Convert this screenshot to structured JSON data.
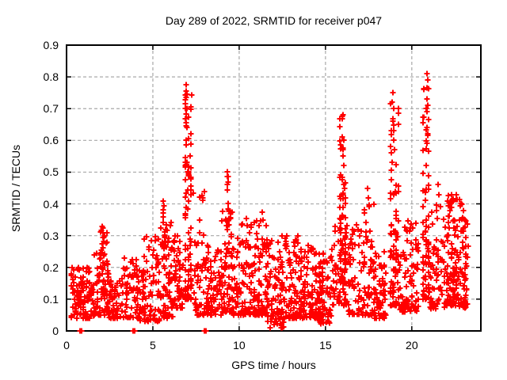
{
  "chart_data": {
    "type": "scatter",
    "title": "Day 289 of 2022, SRMTID for receiver p047",
    "xlabel": "GPS time / hours",
    "ylabel": "SRMTID / TECUs",
    "xlim": [
      0,
      24
    ],
    "ylim": [
      0,
      0.9
    ],
    "xticks": [
      "0",
      "5",
      "10",
      "15",
      "20"
    ],
    "yticks": [
      "0",
      "0.1",
      "0.2",
      "0.3",
      "0.4",
      "0.5",
      "0.6",
      "0.7",
      "0.8",
      "0.9"
    ],
    "grid": {
      "visible": true,
      "style": "dashed",
      "color": "#a8a8a8"
    },
    "legend": "none",
    "marker": {
      "shape": "plus",
      "color": "#ff0000",
      "size": 7
    },
    "border_color": "#000000",
    "seed": 289,
    "point_clusters": [
      {
        "x0": 0.25,
        "x1": 1.6,
        "y0": 0.04,
        "y1": 0.2,
        "n": 115,
        "pw": 1.5
      },
      {
        "x0": 1.6,
        "x1": 2.45,
        "y0": 0.05,
        "y1": 0.31,
        "n": 80,
        "pw": 1.8
      },
      {
        "x0": 1.95,
        "x1": 2.15,
        "y0": 0.18,
        "y1": 0.33,
        "n": 12,
        "pw": 1.0,
        "cols": 2
      },
      {
        "x0": 2.45,
        "x1": 3.2,
        "y0": 0.04,
        "y1": 0.16,
        "n": 55,
        "pw": 1.4
      },
      {
        "x0": 3.2,
        "x1": 4.25,
        "y0": 0.04,
        "y1": 0.23,
        "n": 75,
        "pw": 1.6
      },
      {
        "x0": 4.25,
        "x1": 5.45,
        "y0": 0.03,
        "y1": 0.3,
        "n": 95,
        "pw": 1.9
      },
      {
        "x0": 5.45,
        "x1": 6.15,
        "y0": 0.04,
        "y1": 0.36,
        "n": 70,
        "pw": 1.8
      },
      {
        "x0": 5.58,
        "x1": 5.72,
        "y0": 0.22,
        "y1": 0.41,
        "n": 10,
        "pw": 1.0,
        "cols": 2
      },
      {
        "x0": 6.15,
        "x1": 6.75,
        "y0": 0.07,
        "y1": 0.3,
        "n": 55,
        "pw": 1.5
      },
      {
        "x0": 6.82,
        "x1": 7.28,
        "y0": 0.1,
        "y1": 0.78,
        "n": 90,
        "pw": 2.0,
        "cols": 3
      },
      {
        "x0": 7.35,
        "x1": 8.15,
        "y0": 0.05,
        "y1": 0.44,
        "n": 60,
        "pw": 2.1
      },
      {
        "x0": 8.15,
        "x1": 9.0,
        "y0": 0.05,
        "y1": 0.27,
        "n": 70,
        "pw": 1.5
      },
      {
        "x0": 9.0,
        "x1": 9.6,
        "y0": 0.06,
        "y1": 0.38,
        "n": 55,
        "pw": 1.9
      },
      {
        "x0": 9.26,
        "x1": 9.44,
        "y0": 0.2,
        "y1": 0.5,
        "n": 14,
        "pw": 1.2,
        "cols": 2
      },
      {
        "x0": 9.6,
        "x1": 10.5,
        "y0": 0.05,
        "y1": 0.36,
        "n": 75,
        "pw": 1.9
      },
      {
        "x0": 10.5,
        "x1": 11.6,
        "y0": 0.05,
        "y1": 0.37,
        "n": 115,
        "pw": 1.9
      },
      {
        "x0": 11.6,
        "x1": 12.6,
        "y0": 0.01,
        "y1": 0.3,
        "n": 95,
        "pw": 1.8
      },
      {
        "x0": 12.6,
        "x1": 13.6,
        "y0": 0.04,
        "y1": 0.3,
        "n": 90,
        "pw": 1.7
      },
      {
        "x0": 13.6,
        "x1": 14.6,
        "y0": 0.04,
        "y1": 0.27,
        "n": 90,
        "pw": 1.6
      },
      {
        "x0": 14.6,
        "x1": 15.35,
        "y0": 0.02,
        "y1": 0.25,
        "n": 80,
        "pw": 1.6
      },
      {
        "x0": 15.35,
        "x1": 16.3,
        "y0": 0.08,
        "y1": 0.35,
        "n": 60,
        "pw": 1.5
      },
      {
        "x0": 15.78,
        "x1": 16.22,
        "y0": 0.15,
        "y1": 0.68,
        "n": 60,
        "pw": 1.9,
        "cols": 3
      },
      {
        "x0": 16.3,
        "x1": 17.1,
        "y0": 0.05,
        "y1": 0.35,
        "n": 55,
        "pw": 1.8
      },
      {
        "x0": 17.1,
        "x1": 17.8,
        "y0": 0.05,
        "y1": 0.4,
        "n": 60,
        "pw": 2.0
      },
      {
        "x0": 17.8,
        "x1": 18.5,
        "y0": 0.04,
        "y1": 0.25,
        "n": 60,
        "pw": 1.5
      },
      {
        "x0": 18.72,
        "x1": 19.3,
        "y0": 0.08,
        "y1": 0.72,
        "n": 90,
        "pw": 2.0,
        "cols": 4
      },
      {
        "x0": 19.3,
        "x1": 20.4,
        "y0": 0.06,
        "y1": 0.35,
        "n": 85,
        "pw": 1.8
      },
      {
        "x0": 20.58,
        "x1": 21.05,
        "y0": 0.1,
        "y1": 0.78,
        "n": 80,
        "pw": 1.9,
        "cols": 3
      },
      {
        "x0": 21.05,
        "x1": 22.0,
        "y0": 0.07,
        "y1": 0.4,
        "n": 65,
        "pw": 1.9
      },
      {
        "x0": 22.0,
        "x1": 22.6,
        "y0": 0.08,
        "y1": 0.43,
        "n": 95,
        "pw": 1.6
      },
      {
        "x0": 22.6,
        "x1": 23.25,
        "y0": 0.07,
        "y1": 0.42,
        "n": 75,
        "pw": 1.6
      }
    ],
    "peak_points": [
      [
        6.93,
        0.775
      ],
      [
        6.95,
        0.755
      ],
      [
        6.96,
        0.745
      ],
      [
        6.94,
        0.735
      ],
      [
        6.9,
        0.715
      ],
      [
        6.98,
        0.7
      ],
      [
        6.92,
        0.655
      ],
      [
        6.96,
        0.64
      ],
      [
        6.91,
        0.6
      ],
      [
        6.95,
        0.585
      ],
      [
        6.89,
        0.545
      ],
      [
        6.97,
        0.53
      ],
      [
        7.0,
        0.5
      ],
      [
        6.88,
        0.475
      ],
      [
        5.62,
        0.41
      ],
      [
        5.66,
        0.395
      ],
      [
        2.05,
        0.33
      ],
      [
        9.32,
        0.5
      ],
      [
        9.36,
        0.485
      ],
      [
        9.3,
        0.445
      ],
      [
        10.42,
        0.355
      ],
      [
        11.32,
        0.375
      ],
      [
        11.36,
        0.35
      ],
      [
        8.0,
        0.44
      ],
      [
        7.9,
        0.42
      ],
      [
        12.75,
        0.3
      ],
      [
        14.0,
        0.27
      ],
      [
        16.02,
        0.68
      ],
      [
        15.98,
        0.61
      ],
      [
        16.05,
        0.6
      ],
      [
        15.95,
        0.575
      ],
      [
        16.0,
        0.55
      ],
      [
        16.04,
        0.52
      ],
      [
        15.9,
        0.49
      ],
      [
        16.08,
        0.46
      ],
      [
        17.45,
        0.45
      ],
      [
        17.5,
        0.42
      ],
      [
        18.92,
        0.75
      ],
      [
        18.88,
        0.72
      ],
      [
        18.95,
        0.7
      ],
      [
        18.9,
        0.66
      ],
      [
        18.93,
        0.63
      ],
      [
        18.97,
        0.6
      ],
      [
        19.0,
        0.57
      ],
      [
        18.86,
        0.53
      ],
      [
        20.88,
        0.81
      ],
      [
        20.91,
        0.79
      ],
      [
        20.9,
        0.765
      ],
      [
        20.86,
        0.73
      ],
      [
        20.93,
        0.71
      ],
      [
        20.89,
        0.69
      ],
      [
        20.95,
        0.665
      ],
      [
        20.87,
        0.64
      ],
      [
        20.92,
        0.615
      ],
      [
        20.9,
        0.59
      ],
      [
        20.96,
        0.565
      ],
      [
        20.84,
        0.52
      ],
      [
        21.5,
        0.46
      ],
      [
        21.55,
        0.43
      ],
      [
        22.15,
        0.405
      ],
      [
        22.3,
        0.43
      ],
      [
        22.9,
        0.4
      ],
      [
        23.0,
        0.38
      ]
    ],
    "zero_points": [
      [
        0.8,
        0
      ],
      [
        0.83,
        0
      ],
      [
        0.86,
        0
      ],
      [
        3.87,
        0
      ],
      [
        3.9,
        0
      ],
      [
        3.93,
        0
      ],
      [
        7.99,
        0
      ],
      [
        8.07,
        0
      ]
    ]
  }
}
